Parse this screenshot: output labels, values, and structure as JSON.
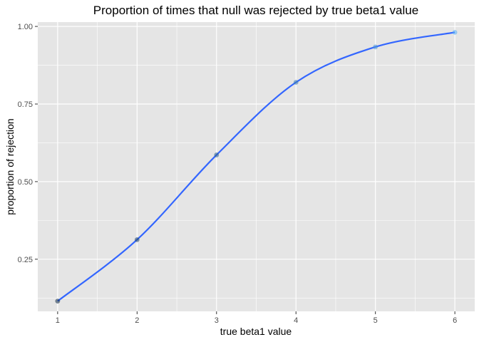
{
  "chart_data": {
    "type": "line",
    "title": "Proportion of times that null was rejected by true beta1 value",
    "xlabel": "true beta1 value",
    "ylabel": "proportion of rejection",
    "x": [
      1,
      2,
      3,
      4,
      5,
      6
    ],
    "series": [
      {
        "values": [
          0.115,
          0.313,
          0.586,
          0.82,
          0.934,
          0.981
        ]
      }
    ],
    "x_ticks": [
      1,
      2,
      3,
      4,
      5,
      6
    ],
    "x_tick_labels": [
      "1",
      "2",
      "3",
      "4",
      "5",
      "6"
    ],
    "y_ticks": [
      0.25,
      0.5,
      0.75,
      1.0
    ],
    "y_tick_labels": [
      "0.25",
      "0.50",
      "0.75",
      "1.00"
    ],
    "xlim": [
      0.75,
      6.25
    ],
    "ylim": [
      0.082,
      1.014
    ],
    "grid": true,
    "colors": {
      "panel_background": "#e5e5e5",
      "grid": "#ffffff",
      "line": "#3366ff",
      "point_gradient_low": "#132b43",
      "point_gradient_high": "#56b1f7"
    }
  }
}
